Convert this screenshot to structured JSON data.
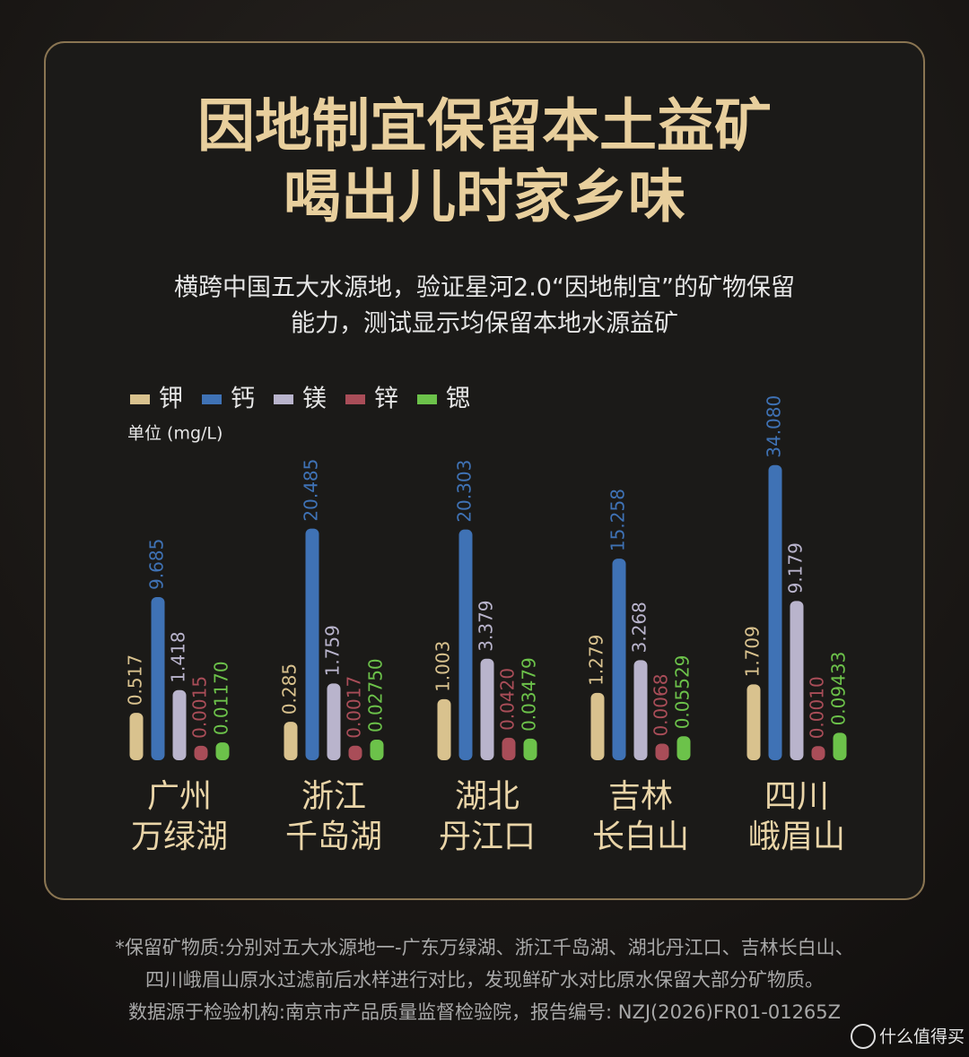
{
  "chart_data": {
    "type": "bar",
    "title": [
      "因地制宜保留本土益矿",
      "喝出儿时家乡味"
    ],
    "subtitle": [
      "横跨中国五大水源地，验证星河2.0“因地制宜”的矿物保留",
      "能力，测试显示均保留本地水源益矿"
    ],
    "unit": "单位 (mg/L)",
    "categories": [
      [
        "广州",
        "万绿湖"
      ],
      [
        "浙江",
        "千岛湖"
      ],
      [
        "湖北",
        "丹江口"
      ],
      [
        "吉林",
        "长白山"
      ],
      [
        "四川",
        "峨眉山"
      ]
    ],
    "series": [
      {
        "name": "钾",
        "color": "#d9c28e",
        "values": [
          0.517,
          0.285,
          1.003,
          1.279,
          1.709
        ],
        "value_labels": [
          "0.517",
          "0.285",
          "1.003",
          "1.279",
          "1.709"
        ]
      },
      {
        "name": "钙",
        "color": "#3f72b5",
        "values": [
          9.685,
          20.485,
          20.303,
          15.258,
          34.08
        ],
        "value_labels": [
          "9.685",
          "20.485",
          "20.303",
          "15.258",
          "34.080"
        ]
      },
      {
        "name": "镁",
        "color": "#b9b4cc",
        "values": [
          1.418,
          1.759,
          3.379,
          3.268,
          9.179
        ],
        "value_labels": [
          "1.418",
          "1.759",
          "3.379",
          "3.268",
          "9.179"
        ]
      },
      {
        "name": "锌",
        "color": "#a94d58",
        "values": [
          0.0015,
          0.0017,
          0.042,
          0.0068,
          0.001
        ],
        "value_labels": [
          "0.0015",
          "0.0017",
          "0.0420",
          "0.0068",
          "0.0010"
        ]
      },
      {
        "name": "锶",
        "color": "#6cc24a",
        "values": [
          0.0117,
          0.0275,
          0.03479,
          0.05529,
          0.09433
        ],
        "value_labels": [
          "0.01170",
          "0.02750",
          "0.03479",
          "0.05529",
          "0.09433"
        ]
      }
    ],
    "footnote": [
      "*保留矿物质:分别对五大水源地一-广东万绿湖、浙江千岛湖、湖北丹江口、吉林长白山、",
      "四川峨眉山原水过滤前后水样进行对比，发现鲜矿水对比原水保留大部分矿物质。",
      "数据源于检验机构:南京市产品质量监督检验院，报告编号: NZJ(2026)FR01-01265Z"
    ],
    "watermark": "什么值得买"
  }
}
